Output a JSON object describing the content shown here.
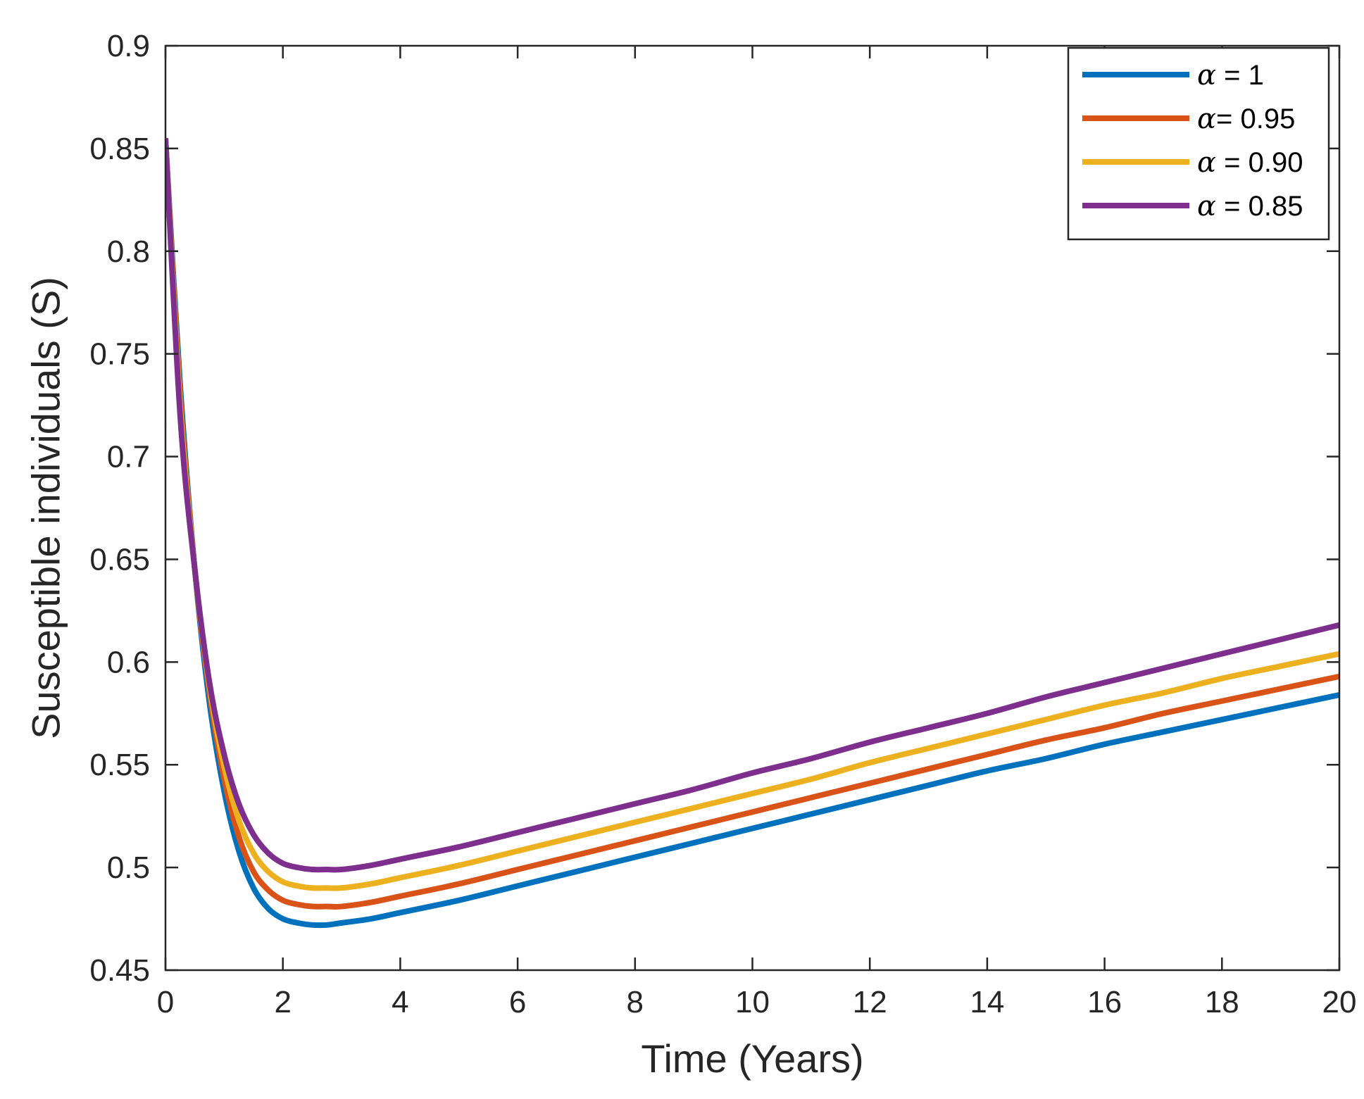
{
  "chart_data": {
    "type": "line",
    "title": "",
    "xlabel": "Time (Years)",
    "ylabel": "Susceptible individuals (S)",
    "xlim": [
      0,
      20
    ],
    "ylim": [
      0.45,
      0.9
    ],
    "xticks": [
      0,
      2,
      4,
      6,
      8,
      10,
      12,
      14,
      16,
      18,
      20
    ],
    "xtick_labels": [
      "0",
      "2",
      "4",
      "6",
      "8",
      "10",
      "12",
      "14",
      "16",
      "18",
      "20"
    ],
    "yticks": [
      0.45,
      0.5,
      0.55,
      0.6,
      0.65,
      0.7,
      0.75,
      0.8,
      0.85,
      0.9
    ],
    "ytick_labels": [
      "0.45",
      "0.5",
      "0.55",
      "0.6",
      "0.65",
      "0.7",
      "0.75",
      "0.8",
      "0.85",
      "0.9"
    ],
    "grid": false,
    "legend_position": "top-right",
    "series": [
      {
        "name": "α = 1",
        "legend_symbol": "α",
        "legend_rest": " = 1",
        "color": "#0072BD",
        "x": [
          0,
          0.25,
          0.5,
          0.75,
          1.0,
          1.25,
          1.5,
          1.75,
          2.0,
          2.25,
          2.5,
          2.75,
          3.0,
          3.5,
          4,
          5,
          6,
          7,
          8,
          9,
          10,
          11,
          12,
          13,
          14,
          15,
          16,
          17,
          18,
          19,
          20
        ],
        "y": [
          0.855,
          0.735,
          0.645,
          0.58,
          0.537,
          0.508,
          0.49,
          0.48,
          0.475,
          0.473,
          0.472,
          0.472,
          0.473,
          0.475,
          0.478,
          0.484,
          0.491,
          0.498,
          0.505,
          0.512,
          0.519,
          0.526,
          0.533,
          0.54,
          0.547,
          0.553,
          0.56,
          0.566,
          0.572,
          0.578,
          0.584
        ]
      },
      {
        "name": "α= 0.95",
        "legend_symbol": "α",
        "legend_rest": "= 0.95",
        "color": "#D95319",
        "x": [
          0,
          0.25,
          0.5,
          0.75,
          1.0,
          1.25,
          1.5,
          1.75,
          2.0,
          2.25,
          2.5,
          2.75,
          3.0,
          3.5,
          4,
          5,
          6,
          7,
          8,
          9,
          10,
          11,
          12,
          13,
          14,
          15,
          16,
          17,
          18,
          19,
          20
        ],
        "y": [
          0.855,
          0.73,
          0.645,
          0.585,
          0.543,
          0.515,
          0.498,
          0.489,
          0.484,
          0.482,
          0.481,
          0.481,
          0.481,
          0.483,
          0.486,
          0.492,
          0.499,
          0.506,
          0.513,
          0.52,
          0.527,
          0.534,
          0.541,
          0.548,
          0.555,
          0.562,
          0.568,
          0.575,
          0.581,
          0.587,
          0.593
        ]
      },
      {
        "name": "α = 0.90",
        "legend_symbol": "α",
        "legend_rest": " = 0.90",
        "color": "#EDB120",
        "x": [
          0,
          0.25,
          0.5,
          0.75,
          1.0,
          1.25,
          1.5,
          1.75,
          2.0,
          2.25,
          2.5,
          2.75,
          3.0,
          3.5,
          4,
          5,
          6,
          7,
          8,
          9,
          10,
          11,
          12,
          13,
          14,
          15,
          16,
          17,
          18,
          19,
          20
        ],
        "y": [
          0.855,
          0.725,
          0.645,
          0.588,
          0.549,
          0.523,
          0.507,
          0.498,
          0.493,
          0.491,
          0.49,
          0.49,
          0.49,
          0.492,
          0.495,
          0.501,
          0.508,
          0.515,
          0.522,
          0.529,
          0.536,
          0.543,
          0.551,
          0.558,
          0.565,
          0.572,
          0.579,
          0.585,
          0.592,
          0.598,
          0.604
        ]
      },
      {
        "name": "α = 0.85",
        "legend_symbol": "α",
        "legend_rest": " = 0.85",
        "color": "#7E2F8E",
        "x": [
          0,
          0.25,
          0.5,
          0.75,
          1.0,
          1.25,
          1.5,
          1.75,
          2.0,
          2.25,
          2.5,
          2.75,
          3.0,
          3.5,
          4,
          5,
          6,
          7,
          8,
          9,
          10,
          11,
          12,
          13,
          14,
          15,
          16,
          17,
          18,
          19,
          20
        ],
        "y": [
          0.855,
          0.72,
          0.645,
          0.59,
          0.555,
          0.531,
          0.516,
          0.507,
          0.502,
          0.5,
          0.499,
          0.499,
          0.499,
          0.501,
          0.504,
          0.51,
          0.517,
          0.524,
          0.531,
          0.538,
          0.546,
          0.553,
          0.561,
          0.568,
          0.575,
          0.583,
          0.59,
          0.597,
          0.604,
          0.611,
          0.618
        ]
      }
    ]
  }
}
